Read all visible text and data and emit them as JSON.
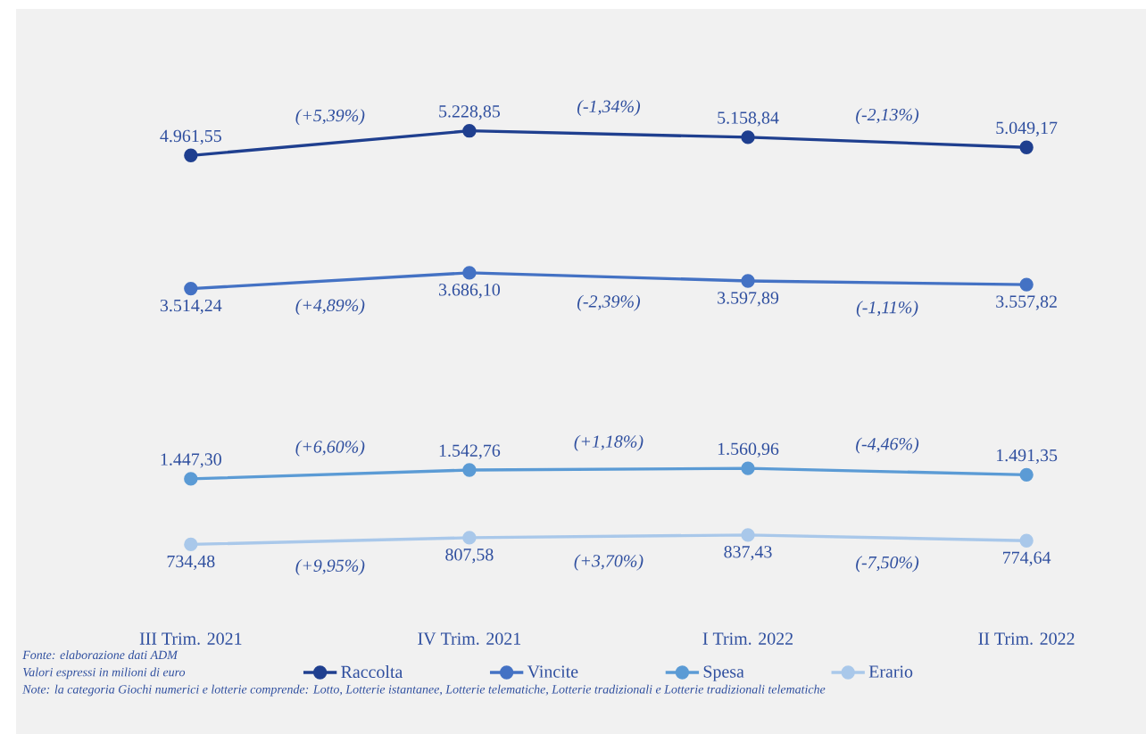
{
  "chart_data": {
    "type": "line",
    "categories": [
      "III Trim. 2021",
      "IV Trim. 2021",
      "I Trim. 2022",
      "II Trim. 2022"
    ],
    "series": [
      {
        "name": "Raccolta",
        "color": "#1f3f8f",
        "values": [
          4961.55,
          5228.85,
          5158.84,
          5049.17
        ],
        "value_labels": [
          "4.961,55",
          "5.228,85",
          "5.158,84",
          "5.049,17"
        ]
      },
      {
        "name": "Vincite",
        "color": "#4472c4",
        "values": [
          3514.24,
          3686.1,
          3597.89,
          3557.82
        ],
        "value_labels": [
          "3.514,24",
          "3.686,10",
          "3.597,89",
          "3.557,82"
        ]
      },
      {
        "name": "Spesa",
        "color": "#5b9bd5",
        "values": [
          1447.3,
          1542.76,
          1560.96,
          1491.35
        ],
        "value_labels": [
          "1.447,30",
          "1.542,76",
          "1.560,96",
          "1.491,35"
        ]
      },
      {
        "name": "Erario",
        "color": "#a9c8ea",
        "values": [
          734.48,
          807.58,
          837.43,
          774.64
        ],
        "value_labels": [
          "734,48",
          "807,58",
          "837,43",
          "774,64"
        ]
      }
    ],
    "legend": "bottom",
    "marker": "circle",
    "line_style": "solid",
    "annotations": [
      "(+5,39%)",
      "(-1,34%)",
      "(-2,13%)",
      "(+4,89%)",
      "(-2,39%)",
      "(-1,11%)",
      "(+6,60%)",
      "(+1,18%)",
      "(-4,46%)",
      "(+9,95%)",
      "(+3,70%)",
      "(-7,50%)",
      "Fonte: elaborazione dati ADM",
      "Valori espressi in milioni di euro",
      "Note: la categoria Giochi numerici e lotterie comprende: Lotto, Lotterie istantanee, Lotterie telematiche, Lotterie tradizionali e Lotterie tradizionali telematiche"
    ]
  }
}
